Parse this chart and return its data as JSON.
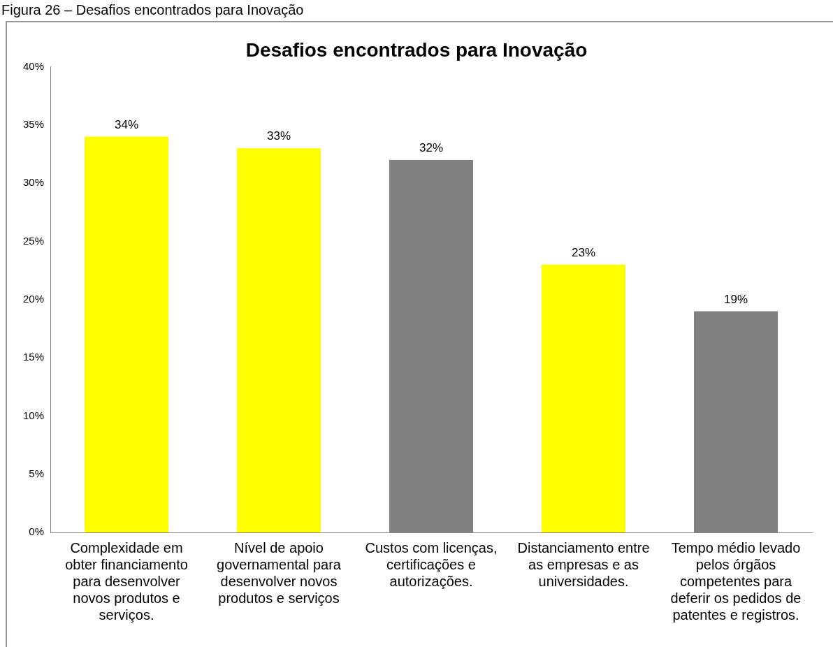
{
  "chart_data": {
    "type": "bar",
    "title": "Desafios encontrados para Inovação",
    "annotations": [
      "Figura 26 – Desafios encontrados para Inovação"
    ],
    "categories": [
      "Complexidade em obter financiamento para desenvolver novos produtos e serviços.",
      "Nível de apoio governamental para desenvolver novos produtos e serviços",
      "Custos com licenças, certificações e autorizações.",
      "Distanciamento entre as empresas e as universidades.",
      "Tempo médio levado pelos órgãos competentes para deferir os pedidos de patentes e registros."
    ],
    "values": [
      34,
      33,
      32,
      23,
      19
    ],
    "colors": [
      "#ffff00",
      "#ffff00",
      "#808080",
      "#ffff00",
      "#808080"
    ],
    "value_labels": [
      "34%",
      "33%",
      "32%",
      "23%",
      "19%"
    ],
    "ylim": [
      0,
      40
    ],
    "yticks": [
      {
        "value": 0,
        "label": "0%"
      },
      {
        "value": 5,
        "label": "5%"
      },
      {
        "value": 10,
        "label": "10%"
      },
      {
        "value": 15,
        "label": "15%"
      },
      {
        "value": 20,
        "label": "20%"
      },
      {
        "value": 25,
        "label": "25%"
      },
      {
        "value": 30,
        "label": "30%"
      },
      {
        "value": 35,
        "label": "35%"
      },
      {
        "value": 40,
        "label": "40%"
      }
    ],
    "grid": false,
    "legend": false
  }
}
